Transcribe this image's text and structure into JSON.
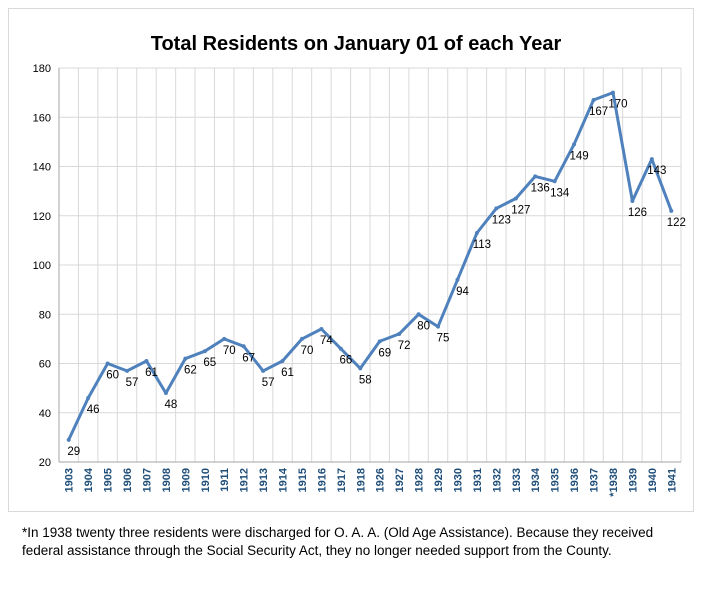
{
  "chart_data": {
    "type": "line",
    "title": "Total Residents on January 01 of each Year",
    "xlabel": "",
    "ylabel": "",
    "ylim": [
      20,
      180
    ],
    "yticks": [
      20,
      40,
      60,
      80,
      100,
      120,
      140,
      160,
      180
    ],
    "grid": true,
    "legend": "none",
    "categories": [
      "1903",
      "1904",
      "1905",
      "1906",
      "1907",
      "1908",
      "1909",
      "1910",
      "1911",
      "1912",
      "1913",
      "1914",
      "1915",
      "1916",
      "1917",
      "1918",
      "1926",
      "1927",
      "1928",
      "1929",
      "1930",
      "1931",
      "1932",
      "1933",
      "1934",
      "1935",
      "1936",
      "1937",
      "*1938",
      "1939",
      "1940",
      "1941"
    ],
    "series": [
      {
        "values": [
          29,
          46,
          60,
          57,
          61,
          48,
          62,
          65,
          70,
          67,
          57,
          61,
          70,
          74,
          66,
          58,
          69,
          72,
          80,
          75,
          94,
          113,
          123,
          127,
          136,
          134,
          149,
          167,
          170,
          126,
          143,
          122
        ]
      }
    ],
    "line_color": "#4f81bd",
    "grid_color": "#d9d9d9",
    "tick_label_color": "#1f4e79"
  },
  "footnote": "*In 1938 twenty three residents were discharged for O. A. A. (Old Age Assistance). Because they received federal assistance through the Social Security Act, they no longer needed support from the County."
}
